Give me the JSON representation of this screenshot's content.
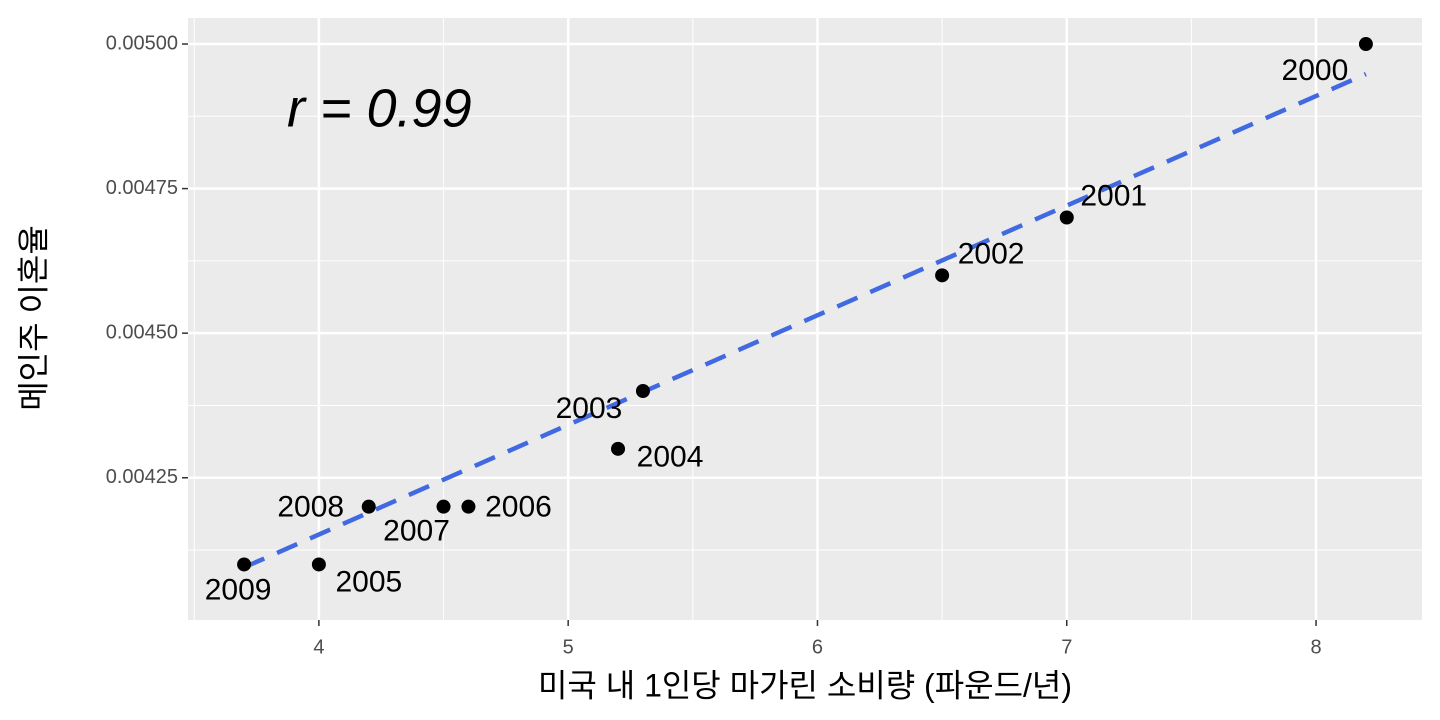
{
  "chart_data": {
    "type": "scatter",
    "annotation": "r = 0.99",
    "x_label": "미국 내 1인당 마가린 소비량 (파운드/년)",
    "y_label": "메인주 이혼율",
    "labels": [
      "2000",
      "2001",
      "2002",
      "2003",
      "2004",
      "2005",
      "2006",
      "2007",
      "2008",
      "2009"
    ],
    "x": [
      8.2,
      7.0,
      6.5,
      5.3,
      5.2,
      4.0,
      4.6,
      4.5,
      4.2,
      3.7
    ],
    "y": [
      0.005,
      0.0047,
      0.0046,
      0.0044,
      0.0043,
      0.0041,
      0.0042,
      0.0042,
      0.0042,
      0.0041
    ],
    "color": "#000000",
    "trend": {
      "x": [
        3.7,
        8.2
      ],
      "y": [
        0.004095,
        0.004948
      ],
      "color": "#4169e1"
    },
    "xlim": [
      3.475,
      8.425
    ],
    "ylim": [
      0.004004,
      0.005045
    ],
    "xticks": [
      4,
      5,
      6,
      7,
      8
    ],
    "yticks": [
      {
        "value": 0.00425,
        "label": "0.00425"
      },
      {
        "value": 0.0045,
        "label": "0.00450"
      },
      {
        "value": 0.00475,
        "label": "0.00475"
      },
      {
        "value": 0.005,
        "label": "0.00500"
      }
    ],
    "grid": true
  }
}
